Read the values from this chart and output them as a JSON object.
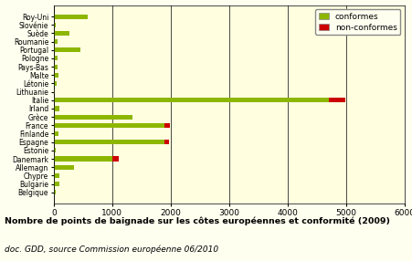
{
  "countries": [
    "Belgique",
    "Bulgarie",
    "Chypre",
    "Allemagn",
    "Danemark",
    "Estonie",
    "Espagne",
    "Finlande",
    "France",
    "Grèce",
    "Irland",
    "Italie",
    "Lithuanie",
    "Létonie",
    "Malte",
    "Pays-Bas",
    "Pologne",
    "Portugal",
    "Roumanie",
    "Suède",
    "Slovénie",
    "Roy-Uni"
  ],
  "conformes": [
    38,
    100,
    95,
    350,
    1000,
    40,
    1900,
    75,
    1900,
    1340,
    100,
    4700,
    12,
    55,
    80,
    70,
    70,
    450,
    60,
    270,
    35,
    580
  ],
  "non_conformes": [
    0,
    0,
    0,
    0,
    120,
    0,
    70,
    0,
    90,
    0,
    0,
    280,
    0,
    0,
    0,
    0,
    0,
    0,
    0,
    0,
    0,
    0
  ],
  "color_conformes": "#8DB600",
  "color_non_conformes": "#CC0000",
  "bg_color": "#FFFFF0",
  "bg_chart": "#FFFFE0",
  "xlim": [
    0,
    6000
  ],
  "xticks": [
    0,
    1000,
    2000,
    3000,
    4000,
    5000,
    6000
  ],
  "title": "Nombre de points de baignade sur les côtes européennes et conformité (2009)",
  "subtitle": "doc. GDD, source Commission européenne 06/2010",
  "legend_conformes": "conformes",
  "legend_non_conformes": "non-conformes"
}
